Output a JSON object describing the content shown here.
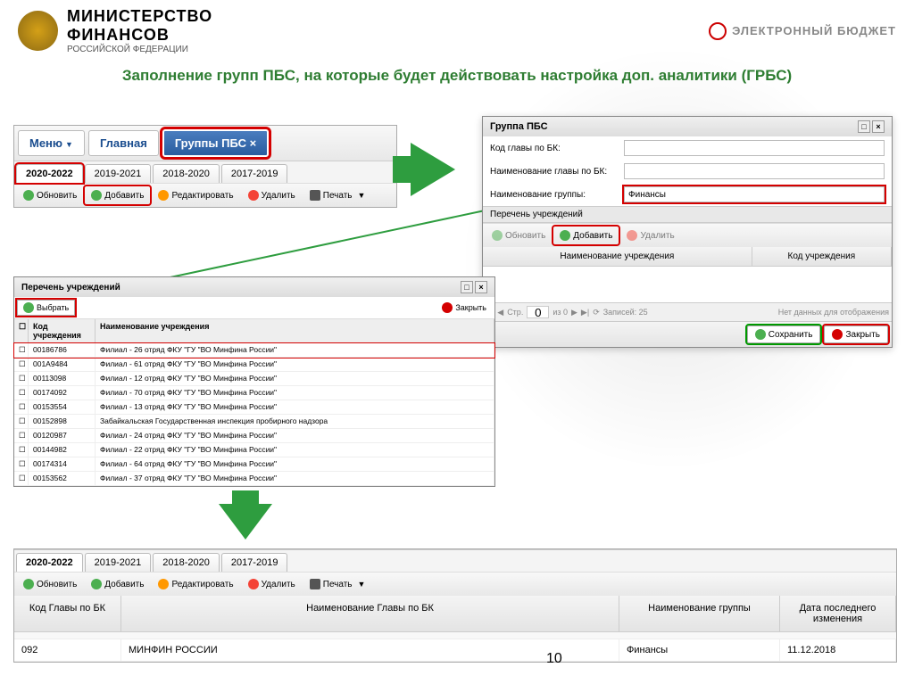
{
  "header": {
    "ministry_line1": "МИНИСТЕРСТВО",
    "ministry_line2": "ФИНАНСОВ",
    "ministry_sub": "РОССИЙСКОЙ ФЕДЕРАЦИИ",
    "eb_text": "ЭЛЕКТРОННЫЙ БЮДЖЕТ"
  },
  "page_title": "Заполнение групп ПБС, на которые будет действовать настройка доп. аналитики (ГРБС)",
  "nav": {
    "menu": "Меню",
    "home": "Главная",
    "groups": "Группы ПБС ×"
  },
  "tabs": [
    "2020-2022",
    "2019-2021",
    "2018-2020",
    "2017-2019"
  ],
  "toolbar": {
    "refresh": "Обновить",
    "add": "Добавить",
    "edit": "Редактировать",
    "delete": "Удалить",
    "print": "Печать"
  },
  "dialog_b": {
    "title": "Группа ПБС",
    "lbl_code": "Код главы по БК:",
    "lbl_name_bk": "Наименование главы по БК:",
    "lbl_group": "Наименование группы:",
    "val_group": "Финансы",
    "section": "Перечень учреждений",
    "col_name": "Наименование учреждения",
    "col_code": "Код учреждения",
    "pager_page": "Стр.",
    "pager_of": "из 0",
    "pager_rec": "Записей: 25",
    "pager_empty": "Нет данных для отображения",
    "save": "Сохранить",
    "close": "Закрыть"
  },
  "dialog_c": {
    "title": "Перечень учреждений",
    "select": "Выбрать",
    "close": "Закрыть",
    "col_code": "Код учреждения",
    "col_name": "Наименование учреждения",
    "rows": [
      {
        "code": "00186786",
        "name": "Филиал - 26 отряд ФКУ \"ГУ \"ВО Минфина России\""
      },
      {
        "code": "001А9484",
        "name": "Филиал - 61 отряд ФКУ \"ГУ \"ВО Минфина России\""
      },
      {
        "code": "00113098",
        "name": "Филиал - 12 отряд ФКУ \"ГУ \"ВО Минфина России\""
      },
      {
        "code": "00174092",
        "name": "Филиал - 70 отряд ФКУ \"ГУ \"ВО Минфина России\""
      },
      {
        "code": "00153554",
        "name": "Филиал - 13 отряд ФКУ \"ГУ \"ВО Минфина России\""
      },
      {
        "code": "00152898",
        "name": "Забайкальская Государственная инспекция пробирного надзора"
      },
      {
        "code": "00120987",
        "name": "Филиал - 24 отряд ФКУ \"ГУ \"ВО Минфина России\""
      },
      {
        "code": "00144982",
        "name": "Филиал - 22 отряд ФКУ \"ГУ \"ВО Минфина России\""
      },
      {
        "code": "00174314",
        "name": "Филиал - 64 отряд ФКУ \"ГУ \"ВО Минфина России\""
      },
      {
        "code": "00153562",
        "name": "Филиал - 37 отряд ФКУ \"ГУ \"ВО Минфина России\""
      }
    ]
  },
  "result": {
    "col_code": "Код Главы по БК",
    "col_name_bk": "Наименование Главы по БК",
    "col_group": "Наименование группы",
    "col_date": "Дата последнего изменения",
    "row_code": "092",
    "row_name": "МИНФИН РОССИИ",
    "row_group": "Финансы",
    "row_date": "11.12.2018"
  },
  "page_number": "10",
  "pager_zero": "0"
}
